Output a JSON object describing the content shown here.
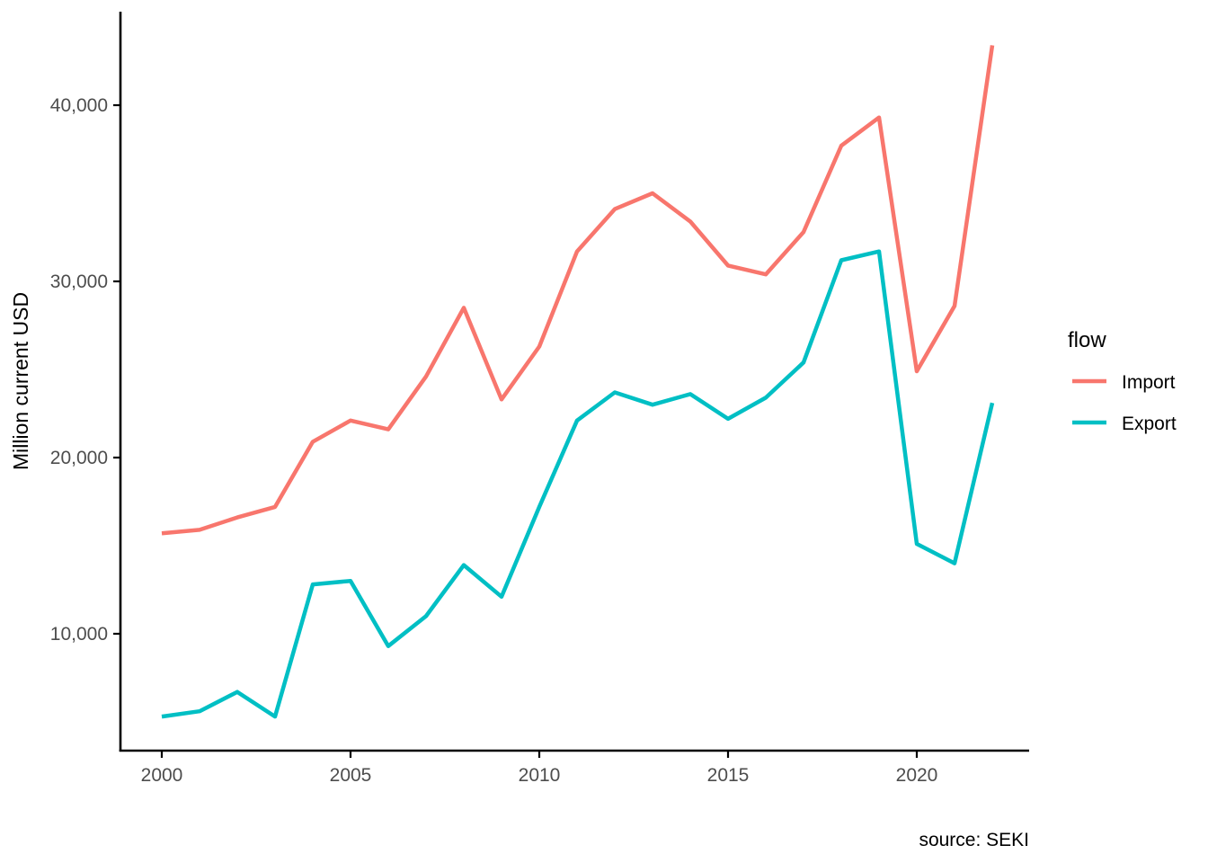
{
  "colors": {
    "import_line": "#F8766D",
    "export_line": "#00BFC4",
    "axis_line": "#000000",
    "tick_text": "#4d4d4d",
    "background": "#ffffff"
  },
  "legend": {
    "title": "flow",
    "items": [
      {
        "label": "Import",
        "color": "#F8766D"
      },
      {
        "label": "Export",
        "color": "#00BFC4"
      }
    ]
  },
  "caption": "source: SEKI",
  "chart_data": {
    "type": "line",
    "title": "",
    "xlabel": "",
    "ylabel": "Million current USD",
    "legend_title": "flow",
    "legend_position": "right",
    "grid": false,
    "xlim": [
      2000,
      2022
    ],
    "ylim": [
      4500,
      43500
    ],
    "x_ticks": [
      2000,
      2005,
      2010,
      2015,
      2020
    ],
    "x_tick_labels": [
      "2000",
      "2005",
      "2010",
      "2015",
      "2020"
    ],
    "y_ticks": [
      10000,
      20000,
      30000,
      40000
    ],
    "y_tick_labels": [
      "10,000",
      "20,000",
      "30,000",
      "40,000"
    ],
    "x": [
      2000,
      2001,
      2002,
      2003,
      2004,
      2005,
      2006,
      2007,
      2008,
      2009,
      2010,
      2011,
      2012,
      2013,
      2014,
      2015,
      2016,
      2017,
      2018,
      2019,
      2020,
      2021,
      2022
    ],
    "series": [
      {
        "name": "Import",
        "color": "#F8766D",
        "values": [
          15700,
          15900,
          16600,
          17200,
          20900,
          22100,
          21600,
          24600,
          28500,
          23300,
          26300,
          31700,
          34100,
          35000,
          33400,
          30900,
          30400,
          32800,
          37700,
          39300,
          24900,
          28600,
          43400
        ]
      },
      {
        "name": "Export",
        "color": "#00BFC4",
        "values": [
          5300,
          5600,
          6700,
          5300,
          12800,
          13000,
          9300,
          11000,
          13900,
          12100,
          17200,
          22100,
          23700,
          23000,
          23600,
          22200,
          23400,
          25400,
          31200,
          31700,
          15100,
          14000,
          23100
        ]
      }
    ]
  }
}
